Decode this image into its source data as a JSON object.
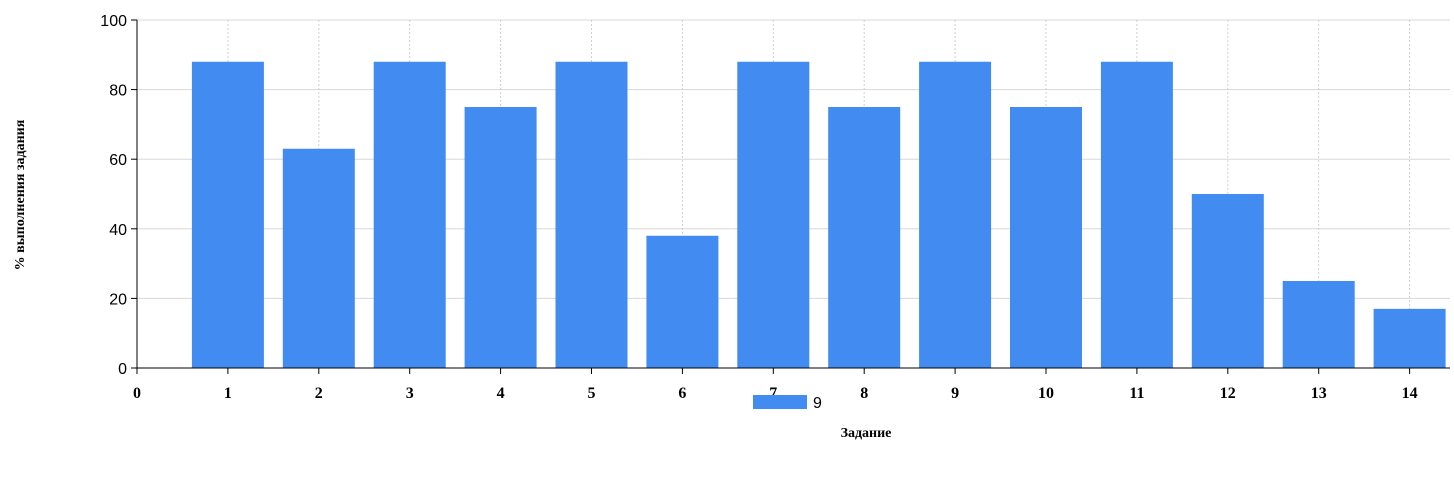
{
  "chart_data": {
    "type": "bar",
    "xlabel": "Задание",
    "ylabel": "% выполнения задания",
    "ylim": [
      0,
      100
    ],
    "yticks": [
      0,
      20,
      40,
      60,
      80,
      100
    ],
    "xticks": [
      "0",
      "1",
      "2",
      "3",
      "4",
      "5",
      "6",
      "7",
      "8",
      "9",
      "10",
      "11",
      "12",
      "13",
      "14"
    ],
    "categories": [
      "1",
      "2",
      "3",
      "4",
      "5",
      "6",
      "7",
      "8",
      "9",
      "10",
      "11",
      "12",
      "13",
      "14"
    ],
    "series": [
      {
        "name": "9",
        "color": "#428bf0",
        "values": [
          88,
          63,
          88,
          75,
          88,
          38,
          88,
          75,
          88,
          75,
          88,
          50,
          25,
          17
        ]
      }
    ],
    "grid": true,
    "legend_position": "bottom-center"
  }
}
